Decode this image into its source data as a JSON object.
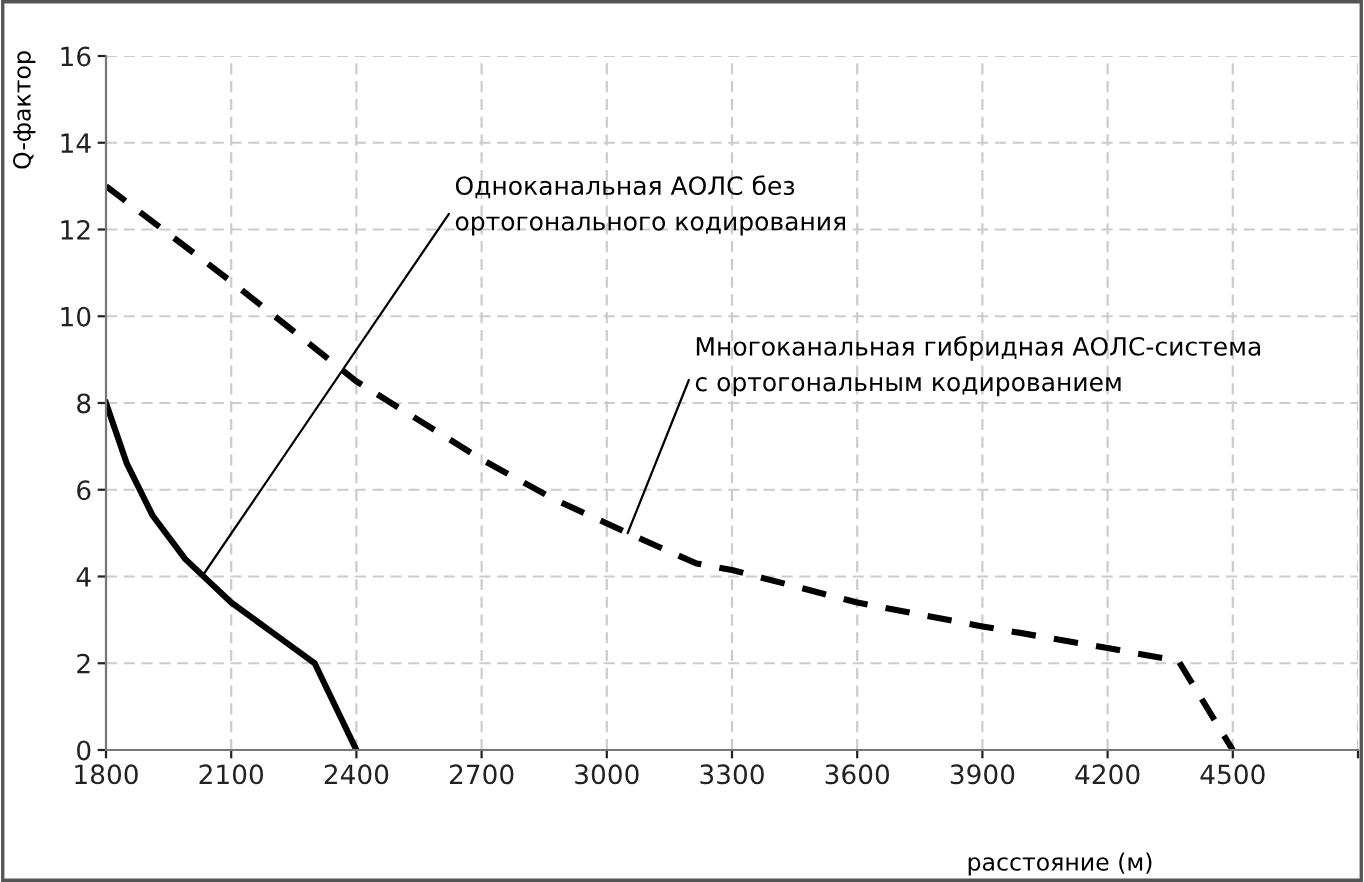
{
  "chart_data": {
    "type": "line",
    "xlabel": "расстояние (м)",
    "ylabel": "Q-фактор",
    "xlim": [
      1800,
      4800
    ],
    "xticks": [
      1800,
      2100,
      2400,
      2700,
      3000,
      3300,
      3600,
      3900,
      4200,
      4500,
      {
        "value": 4800,
        "label": null
      }
    ],
    "ylim": [
      0,
      16
    ],
    "yticks": [
      0,
      2,
      4,
      6,
      8,
      10,
      12,
      14,
      16
    ],
    "grid": true,
    "marker": "none",
    "series": [
      {
        "color": "#000000",
        "line_style": "solid",
        "x": [
          1800,
          1850,
          1912,
          1990,
          2100,
          2200,
          2300,
          2400
        ],
        "values": [
          8.0,
          6.6,
          5.4,
          4.4,
          3.4,
          2.7,
          2.0,
          0
        ]
      },
      {
        "color": "#000000",
        "line_style": "dashed",
        "x": [
          1800,
          2100,
          2400,
          2700,
          2870,
          3050,
          3215,
          3300,
          3600,
          3900,
          4200,
          4370,
          4500
        ],
        "values": [
          13.0,
          10.8,
          8.5,
          6.7,
          5.8,
          5.0,
          4.3,
          4.15,
          3.4,
          2.85,
          2.35,
          2.05,
          0
        ]
      }
    ],
    "annotations": [
      {
        "text": "Одноканальная АОЛС без\nортогонального кодирования",
        "x": 2030,
        "y": 4.0
      },
      {
        "text": "Многоканальная гибридная АОЛС-система\nс ортогональным кодированием",
        "x": 3050,
        "y": 5.0
      }
    ]
  }
}
